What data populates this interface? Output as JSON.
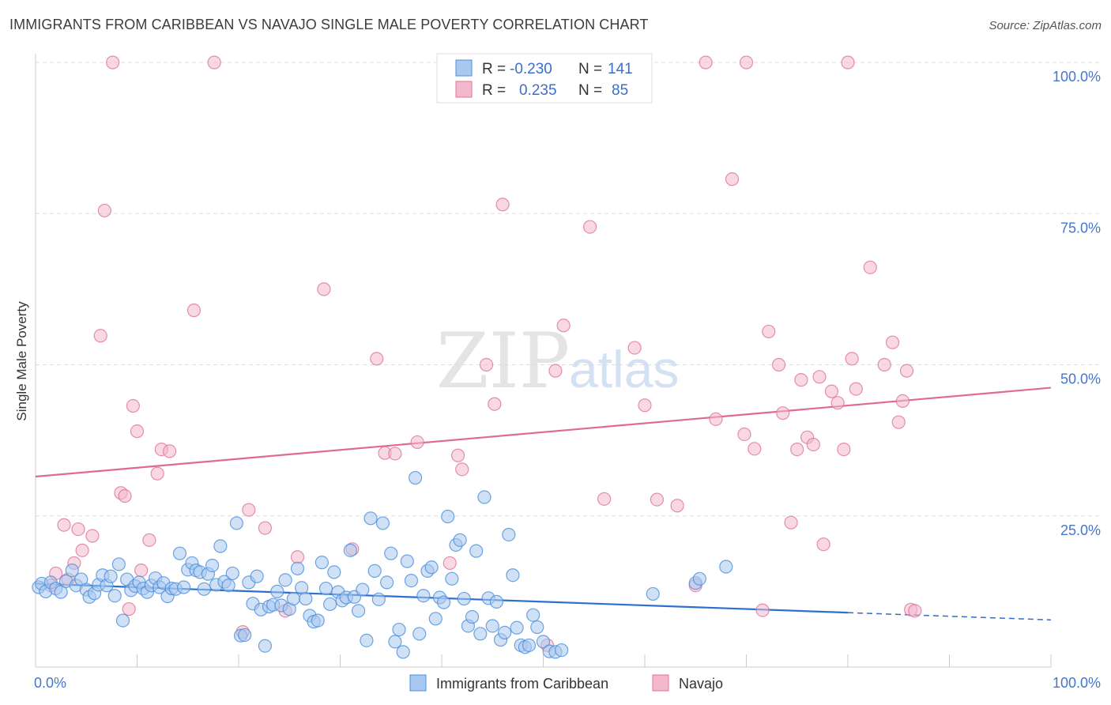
{
  "title": "IMMIGRANTS FROM CARIBBEAN VS NAVAJO SINGLE MALE POVERTY CORRELATION CHART",
  "source": "Source: ZipAtlas.com",
  "watermark": {
    "part1": "ZIP",
    "part2": "atlas"
  },
  "colors": {
    "blue": "#4a8fdc",
    "blue_fill": "#a9c8ef",
    "pink": "#e0739a",
    "pink_fill": "#f3b8cc",
    "blue_line": "#2c6fcf",
    "pink_line": "#e06a93",
    "tick_text": "#4477cc"
  },
  "legend": {
    "rows": [
      {
        "r_label": "R =",
        "r_value": "-0.230",
        "n_label": "N =",
        "n_value": "141"
      },
      {
        "r_label": "R =",
        "r_value": "0.235",
        "n_label": "N =",
        "n_value": "85"
      }
    ]
  },
  "chart_data": {
    "type": "scatter",
    "title": "IMMIGRANTS FROM CARIBBEAN VS NAVAJO SINGLE MALE POVERTY CORRELATION CHART",
    "xlabel": "",
    "ylabel": "Single Male Poverty",
    "xlim": [
      0,
      100
    ],
    "ylim": [
      0,
      100
    ],
    "x_tick_labels": [
      "0.0%",
      "100.0%"
    ],
    "y_tick_labels": [
      "25.0%",
      "50.0%",
      "75.0%",
      "100.0%"
    ],
    "y_ticks": [
      25,
      50,
      75,
      100
    ],
    "grid": true,
    "legend_position": "top-center",
    "series": [
      {
        "name": "Immigrants from Caribbean",
        "color": "#4a8fdc",
        "trend": {
          "x": [
            0,
            80
          ],
          "y": [
            13.8,
            9.0
          ],
          "dashed_extension": {
            "x": [
              80,
              100
            ],
            "y": [
              9.0,
              7.8
            ]
          }
        },
        "points": [
          [
            0.3,
            13.2
          ],
          [
            0.6,
            13.8
          ],
          [
            1.0,
            12.5
          ],
          [
            1.5,
            14.0
          ],
          [
            2.0,
            13.0
          ],
          [
            2.5,
            12.4
          ],
          [
            3.0,
            14.2
          ],
          [
            3.6,
            16.0
          ],
          [
            4.0,
            13.5
          ],
          [
            4.5,
            14.5
          ],
          [
            5.0,
            12.8
          ],
          [
            5.3,
            11.6
          ],
          [
            5.8,
            12.2
          ],
          [
            6.2,
            13.6
          ],
          [
            6.6,
            15.2
          ],
          [
            7.0,
            13.5
          ],
          [
            7.4,
            15.0
          ],
          [
            7.8,
            11.8
          ],
          [
            8.2,
            17.0
          ],
          [
            8.6,
            7.7
          ],
          [
            9.0,
            14.5
          ],
          [
            9.4,
            12.7
          ],
          [
            9.8,
            13.4
          ],
          [
            10.2,
            14.0
          ],
          [
            10.6,
            13.0
          ],
          [
            11.0,
            12.4
          ],
          [
            11.4,
            13.5
          ],
          [
            11.8,
            14.7
          ],
          [
            12.2,
            13.2
          ],
          [
            12.6,
            13.9
          ],
          [
            13.0,
            11.7
          ],
          [
            13.4,
            13.0
          ],
          [
            13.8,
            12.9
          ],
          [
            14.2,
            18.8
          ],
          [
            14.6,
            13.2
          ],
          [
            15.0,
            16.1
          ],
          [
            15.4,
            17.2
          ],
          [
            15.8,
            16.0
          ],
          [
            16.2,
            15.7
          ],
          [
            16.6,
            12.9
          ],
          [
            17.0,
            15.4
          ],
          [
            17.4,
            16.8
          ],
          [
            17.8,
            13.6
          ],
          [
            18.2,
            20.0
          ],
          [
            18.6,
            14.1
          ],
          [
            19.0,
            13.5
          ],
          [
            19.4,
            15.5
          ],
          [
            19.8,
            23.8
          ],
          [
            20.2,
            5.2
          ],
          [
            20.6,
            5.3
          ],
          [
            21.0,
            14.0
          ],
          [
            21.4,
            10.5
          ],
          [
            21.8,
            15.0
          ],
          [
            22.2,
            9.5
          ],
          [
            22.6,
            3.5
          ],
          [
            23.0,
            10.0
          ],
          [
            23.4,
            10.3
          ],
          [
            23.8,
            12.5
          ],
          [
            24.2,
            10.2
          ],
          [
            24.6,
            14.4
          ],
          [
            25.0,
            9.6
          ],
          [
            25.4,
            11.3
          ],
          [
            25.8,
            16.3
          ],
          [
            26.2,
            13.1
          ],
          [
            26.6,
            11.3
          ],
          [
            27.0,
            8.5
          ],
          [
            27.4,
            7.5
          ],
          [
            27.8,
            7.7
          ],
          [
            28.2,
            17.3
          ],
          [
            28.6,
            13.0
          ],
          [
            29.0,
            10.4
          ],
          [
            29.4,
            15.7
          ],
          [
            29.8,
            12.4
          ],
          [
            30.2,
            11.0
          ],
          [
            30.6,
            11.5
          ],
          [
            31.0,
            19.3
          ],
          [
            31.4,
            11.6
          ],
          [
            31.8,
            9.3
          ],
          [
            32.2,
            12.8
          ],
          [
            32.6,
            4.4
          ],
          [
            33.0,
            24.6
          ],
          [
            33.4,
            15.9
          ],
          [
            33.8,
            11.2
          ],
          [
            34.2,
            23.8
          ],
          [
            34.6,
            14.0
          ],
          [
            35.0,
            18.8
          ],
          [
            35.4,
            4.2
          ],
          [
            35.8,
            6.2
          ],
          [
            36.2,
            2.5
          ],
          [
            36.6,
            17.5
          ],
          [
            37.0,
            14.3
          ],
          [
            37.4,
            31.3
          ],
          [
            37.8,
            5.5
          ],
          [
            38.2,
            11.8
          ],
          [
            38.6,
            15.9
          ],
          [
            39.0,
            16.5
          ],
          [
            39.4,
            8.0
          ],
          [
            39.8,
            11.5
          ],
          [
            40.2,
            10.7
          ],
          [
            40.6,
            24.9
          ],
          [
            41.0,
            14.6
          ],
          [
            41.4,
            20.2
          ],
          [
            41.8,
            21.0
          ],
          [
            42.2,
            11.3
          ],
          [
            42.6,
            6.8
          ],
          [
            43.0,
            8.3
          ],
          [
            43.4,
            19.2
          ],
          [
            43.8,
            5.5
          ],
          [
            44.2,
            28.1
          ],
          [
            44.6,
            11.4
          ],
          [
            45.0,
            6.8
          ],
          [
            45.4,
            10.8
          ],
          [
            45.8,
            4.5
          ],
          [
            46.2,
            5.7
          ],
          [
            46.6,
            21.9
          ],
          [
            47.0,
            15.2
          ],
          [
            47.4,
            6.5
          ],
          [
            47.8,
            3.6
          ],
          [
            48.2,
            3.3
          ],
          [
            48.6,
            3.6
          ],
          [
            49.0,
            8.6
          ],
          [
            49.4,
            6.6
          ],
          [
            50.0,
            4.2
          ],
          [
            50.6,
            2.6
          ],
          [
            51.2,
            2.5
          ],
          [
            51.8,
            2.8
          ],
          [
            60.8,
            12.1
          ],
          [
            65.0,
            13.9
          ],
          [
            65.4,
            14.6
          ],
          [
            68.0,
            16.6
          ]
        ]
      },
      {
        "name": "Navajo",
        "color": "#e0739a",
        "trend": {
          "x": [
            0,
            100
          ],
          "y": [
            31.5,
            46.2
          ]
        },
        "points": [
          [
            1.5,
            13.5
          ],
          [
            2.0,
            15.5
          ],
          [
            2.8,
            23.5
          ],
          [
            3.2,
            14.5
          ],
          [
            3.8,
            17.2
          ],
          [
            4.2,
            22.8
          ],
          [
            4.6,
            19.3
          ],
          [
            5.6,
            21.7
          ],
          [
            6.4,
            54.8
          ],
          [
            6.8,
            75.5
          ],
          [
            7.6,
            100.0
          ],
          [
            8.4,
            28.8
          ],
          [
            8.8,
            28.3
          ],
          [
            9.2,
            9.6
          ],
          [
            9.6,
            43.2
          ],
          [
            10.0,
            39.0
          ],
          [
            10.4,
            16.0
          ],
          [
            11.2,
            21.0
          ],
          [
            12.0,
            32.0
          ],
          [
            12.4,
            36.0
          ],
          [
            13.2,
            35.7
          ],
          [
            15.6,
            59.0
          ],
          [
            17.6,
            100.0
          ],
          [
            20.4,
            5.8
          ],
          [
            21.0,
            26.0
          ],
          [
            22.6,
            23.0
          ],
          [
            24.6,
            9.3
          ],
          [
            25.8,
            18.2
          ],
          [
            28.4,
            62.5
          ],
          [
            31.2,
            19.5
          ],
          [
            33.6,
            51.0
          ],
          [
            34.4,
            35.4
          ],
          [
            35.4,
            35.3
          ],
          [
            37.6,
            37.2
          ],
          [
            40.8,
            17.2
          ],
          [
            41.6,
            35.0
          ],
          [
            42.0,
            32.7
          ],
          [
            44.4,
            50.0
          ],
          [
            45.2,
            43.5
          ],
          [
            46.0,
            76.5
          ],
          [
            48.0,
            100.0
          ],
          [
            50.4,
            3.6
          ],
          [
            51.2,
            49.0
          ],
          [
            52.0,
            56.5
          ],
          [
            53.2,
            100.0
          ],
          [
            54.6,
            72.8
          ],
          [
            56.0,
            27.8
          ],
          [
            59.0,
            52.8
          ],
          [
            60.0,
            43.3
          ],
          [
            61.2,
            27.7
          ],
          [
            63.2,
            26.7
          ],
          [
            65.0,
            13.5
          ],
          [
            67.0,
            41.0
          ],
          [
            68.6,
            80.7
          ],
          [
            69.8,
            38.5
          ],
          [
            70.8,
            36.1
          ],
          [
            71.6,
            9.4
          ],
          [
            72.2,
            55.5
          ],
          [
            73.2,
            50.0
          ],
          [
            73.6,
            42.0
          ],
          [
            74.4,
            23.9
          ],
          [
            75.0,
            36.0
          ],
          [
            75.4,
            47.5
          ],
          [
            76.0,
            38.0
          ],
          [
            76.6,
            36.8
          ],
          [
            77.2,
            48.0
          ],
          [
            77.6,
            20.3
          ],
          [
            78.4,
            45.6
          ],
          [
            79.0,
            43.7
          ],
          [
            79.6,
            36.0
          ],
          [
            80.4,
            51.0
          ],
          [
            80.8,
            46.0
          ],
          [
            82.2,
            66.1
          ],
          [
            83.6,
            50.0
          ],
          [
            84.4,
            53.7
          ],
          [
            85.0,
            40.5
          ],
          [
            85.4,
            44.0
          ],
          [
            85.8,
            49.0
          ],
          [
            86.2,
            9.5
          ],
          [
            86.6,
            9.3
          ],
          [
            80.0,
            100.0
          ],
          [
            70.0,
            100.0
          ],
          [
            66.0,
            100.0
          ],
          [
            55.0,
            100.0
          ],
          [
            58.0,
            100.0
          ]
        ]
      }
    ]
  }
}
